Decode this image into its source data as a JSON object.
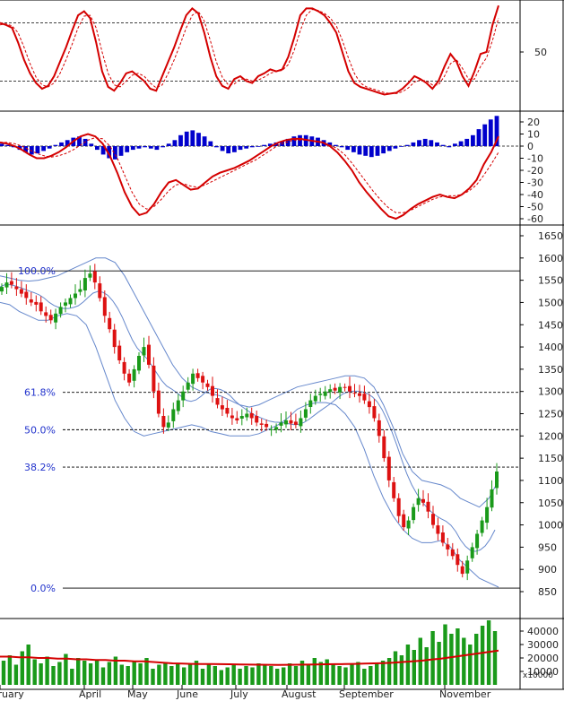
{
  "chart_data": [
    {
      "type": "line",
      "panel": "stochastic",
      "y_ticks": [
        50
      ],
      "reference_lines": [
        20,
        80
      ],
      "series": [
        {
          "role": "main",
          "color": "#d40000",
          "values": [
            80,
            78,
            75,
            60,
            42,
            28,
            18,
            12,
            15,
            25,
            40,
            55,
            72,
            88,
            92,
            85,
            60,
            30,
            14,
            10,
            18,
            28,
            30,
            25,
            20,
            12,
            10,
            25,
            40,
            55,
            72,
            88,
            95,
            90,
            70,
            45,
            25,
            15,
            12,
            22,
            25,
            20,
            18,
            25,
            28,
            32,
            30,
            32,
            45,
            65,
            88,
            95,
            95,
            92,
            88,
            80,
            70,
            50,
            30,
            18,
            14,
            12,
            10,
            8,
            6,
            7,
            8,
            12,
            18,
            25,
            22,
            18,
            12,
            20,
            35,
            48,
            40,
            25,
            15,
            30,
            48,
            50,
            78,
            98
          ]
        },
        {
          "role": "signal",
          "color": "#d40000",
          "values": [
            78,
            79,
            77,
            70,
            55,
            38,
            24,
            16,
            14,
            18,
            28,
            42,
            58,
            75,
            87,
            88,
            75,
            50,
            28,
            16,
            14,
            20,
            26,
            28,
            25,
            18,
            13,
            16,
            28,
            42,
            58,
            75,
            88,
            92,
            82,
            62,
            40,
            24,
            16,
            17,
            22,
            22,
            20,
            21,
            24,
            28,
            30,
            31,
            37,
            52,
            72,
            88,
            94,
            93,
            90,
            85,
            77,
            62,
            44,
            28,
            18,
            14,
            12,
            10,
            8,
            7,
            7,
            9,
            13,
            19,
            21,
            20,
            16,
            16,
            25,
            38,
            42,
            33,
            22,
            22,
            35,
            44,
            62,
            85
          ]
        }
      ]
    },
    {
      "type": "bar",
      "panel": "macd",
      "y_ticks": [
        20,
        10,
        0,
        -10,
        -20,
        -30,
        -40,
        -50,
        -60
      ],
      "histogram_color": "#0000cc",
      "histogram": [
        2,
        1,
        -1,
        -3,
        -5,
        -7,
        -6,
        -4,
        -2,
        1,
        3,
        5,
        7,
        8,
        6,
        2,
        -3,
        -7,
        -10,
        -11,
        -8,
        -5,
        -3,
        -2,
        -1,
        -2,
        -3,
        -1,
        2,
        5,
        9,
        12,
        13,
        11,
        8,
        4,
        -1,
        -4,
        -6,
        -5,
        -3,
        -2,
        -1,
        0,
        1,
        2,
        3,
        4,
        6,
        8,
        9,
        9,
        8,
        7,
        5,
        3,
        1,
        -1,
        -3,
        -5,
        -7,
        -8,
        -9,
        -8,
        -6,
        -4,
        -2,
        0,
        1,
        3,
        5,
        6,
        5,
        3,
        1,
        -1,
        2,
        4,
        6,
        9,
        14,
        18,
        22,
        25
      ],
      "series": [
        {
          "role": "macd",
          "color": "#d40000",
          "values": [
            3,
            2,
            0,
            -3,
            -7,
            -10,
            -10,
            -8,
            -5,
            -1,
            4,
            8,
            10,
            8,
            2,
            -8,
            -22,
            -38,
            -50,
            -57,
            -55,
            -48,
            -38,
            -30,
            -28,
            -32,
            -36,
            -35,
            -30,
            -25,
            -22,
            -20,
            -18,
            -15,
            -12,
            -8,
            -4,
            0,
            3,
            5,
            6,
            6,
            5,
            4,
            3,
            0,
            -5,
            -12,
            -20,
            -30,
            -38,
            -45,
            -52,
            -58,
            -60,
            -57,
            -52,
            -48,
            -45,
            -42,
            -40,
            -42,
            -43,
            -40,
            -35,
            -28,
            -15,
            -5,
            8
          ]
        },
        {
          "role": "signal",
          "color": "#d40000",
          "values": [
            3,
            3,
            2,
            0,
            -3,
            -6,
            -8,
            -9,
            -8,
            -6,
            -3,
            1,
            5,
            7,
            6,
            0,
            -10,
            -24,
            -38,
            -48,
            -52,
            -50,
            -44,
            -37,
            -32,
            -31,
            -33,
            -34,
            -32,
            -29,
            -26,
            -23,
            -20,
            -17,
            -14,
            -11,
            -7,
            -3,
            1,
            3,
            5,
            5,
            5,
            4,
            3,
            1,
            -2,
            -7,
            -14,
            -22,
            -30,
            -38,
            -45,
            -51,
            -55,
            -55,
            -53,
            -50,
            -47,
            -44,
            -42,
            -41,
            -41,
            -40,
            -37,
            -32,
            -24,
            -15,
            -5
          ]
        }
      ]
    },
    {
      "type": "candlestick",
      "panel": "price",
      "y_ticks": [
        1650,
        1600,
        1550,
        1500,
        1450,
        1400,
        1350,
        1300,
        1250,
        1200,
        1150,
        1100,
        1050,
        1000,
        950,
        900,
        850
      ],
      "x_ticks": [
        "February",
        "April",
        "May",
        "June",
        "July",
        "August",
        "September",
        "November"
      ],
      "fibonacci_levels": [
        {
          "label": "100.0%",
          "value": 1571
        },
        {
          "label": "61.8%",
          "value": 1298
        },
        {
          "label": "50.0%",
          "value": 1214
        },
        {
          "label": "38.2%",
          "value": 1130
        },
        {
          "label": "0.0%",
          "value": 858
        }
      ],
      "up_color": "#1a9a1a",
      "down_color": "#dd1111",
      "band_color": "#6688cc",
      "close": [
        1535,
        1545,
        1540,
        1530,
        1520,
        1510,
        1500,
        1495,
        1480,
        1470,
        1460,
        1475,
        1490,
        1500,
        1510,
        1520,
        1530,
        1555,
        1565,
        1545,
        1510,
        1470,
        1440,
        1400,
        1370,
        1340,
        1320,
        1350,
        1380,
        1400,
        1360,
        1300,
        1250,
        1220,
        1230,
        1260,
        1280,
        1300,
        1320,
        1340,
        1330,
        1320,
        1310,
        1290,
        1270,
        1260,
        1250,
        1240,
        1235,
        1245,
        1250,
        1240,
        1230,
        1225,
        1220,
        1215,
        1220,
        1230,
        1235,
        1228,
        1225,
        1240,
        1260,
        1280,
        1290,
        1295,
        1300,
        1305,
        1302,
        1310,
        1308,
        1300,
        1295,
        1290,
        1280,
        1265,
        1240,
        1200,
        1150,
        1100,
        1060,
        1020,
        995,
        1010,
        1040,
        1060,
        1050,
        1030,
        1000,
        980,
        960,
        945,
        930,
        910,
        890,
        920,
        950,
        980,
        1010,
        1040,
        1080,
        1120
      ],
      "upper_band": [
        1560,
        1555,
        1550,
        1548,
        1550,
        1555,
        1560,
        1570,
        1580,
        1590,
        1600,
        1600,
        1590,
        1560,
        1520,
        1480,
        1440,
        1400,
        1360,
        1330,
        1310,
        1300,
        1295,
        1290,
        1280,
        1270,
        1265,
        1270,
        1280,
        1290,
        1300,
        1310,
        1315,
        1320,
        1325,
        1330,
        1335,
        1335,
        1330,
        1310,
        1270,
        1220,
        1160,
        1120,
        1100,
        1095,
        1090,
        1080,
        1060,
        1050,
        1040,
        1060,
        1100
      ],
      "lower_band": [
        1500,
        1495,
        1480,
        1470,
        1460,
        1460,
        1470,
        1475,
        1470,
        1450,
        1400,
        1340,
        1280,
        1240,
        1210,
        1200,
        1205,
        1210,
        1215,
        1220,
        1225,
        1220,
        1210,
        1205,
        1200,
        1200,
        1200,
        1205,
        1215,
        1225,
        1240,
        1260,
        1270,
        1275,
        1275,
        1270,
        1250,
        1220,
        1170,
        1110,
        1060,
        1020,
        990,
        970,
        960,
        960,
        965,
        950,
        920,
        900,
        880,
        870,
        860
      ]
    },
    {
      "type": "bar",
      "panel": "volume",
      "y_ticks": [
        40000,
        30000,
        20000,
        10000
      ],
      "multiplier_label": "x10000",
      "bar_color": "#1a9a1a",
      "ma_color": "#d40000",
      "values": [
        18000,
        22000,
        15000,
        25000,
        30000,
        19000,
        16000,
        21000,
        14000,
        17000,
        23000,
        12000,
        20000,
        18000,
        16000,
        19000,
        13000,
        17000,
        21000,
        15000,
        14000,
        18000,
        16000,
        20000,
        12000,
        15000,
        17000,
        14000,
        16000,
        13000,
        15000,
        18000,
        12000,
        16000,
        14000,
        11000,
        13000,
        15000,
        12000,
        14000,
        13000,
        16000,
        15000,
        14000,
        12000,
        13000,
        16000,
        14000,
        18000,
        15000,
        20000,
        17000,
        19000,
        16000,
        14000,
        13000,
        15000,
        17000,
        12000,
        14000,
        16000,
        18000,
        20000,
        25000,
        22000,
        30000,
        26000,
        35000,
        28000,
        40000,
        32000,
        45000,
        38000,
        42000,
        35000,
        30000,
        38000,
        44000,
        48000,
        40000
      ],
      "ma": [
        21000,
        21000,
        20500,
        20500,
        20000,
        20000,
        19500,
        19500,
        19000,
        19000,
        18500,
        18500,
        18000,
        18000,
        17500,
        17500,
        17000,
        16500,
        16000,
        15800,
        15600,
        15500,
        15500,
        15400,
        15300,
        15200,
        15100,
        15000,
        14900,
        14800,
        14900,
        15000,
        15100,
        15200,
        15300,
        15400,
        15500,
        15600,
        15800,
        16000,
        16200,
        16500,
        17000,
        17500,
        18000,
        18800,
        19500,
        20500,
        21500,
        22500,
        23500,
        24500,
        25500
      ]
    }
  ]
}
